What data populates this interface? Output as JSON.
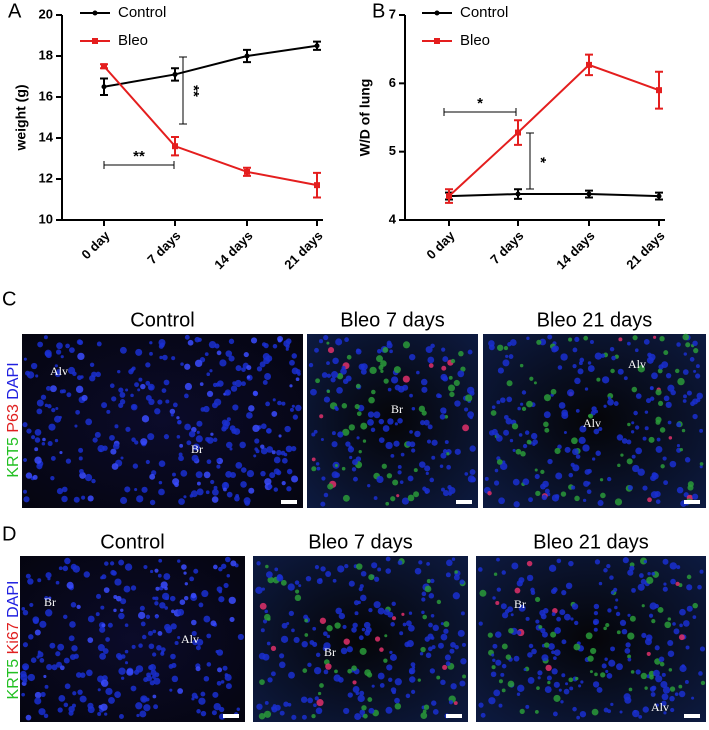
{
  "chart_data": [
    {
      "panel": "A",
      "type": "line",
      "ylabel": "weight (g)",
      "categories": [
        "0 day",
        "7 days",
        "14 days",
        "21 days"
      ],
      "ylim": [
        10,
        20
      ],
      "yticks": [
        10,
        12,
        14,
        16,
        18,
        20
      ],
      "legend": "upper left",
      "series": [
        {
          "name": "Control",
          "color": "#000000",
          "marker": "circle",
          "values": [
            16.5,
            17.1,
            18.0,
            18.5
          ],
          "errors": [
            0.4,
            0.3,
            0.3,
            0.2
          ]
        },
        {
          "name": "Bleo",
          "color": "#e41e1e",
          "marker": "square",
          "values": [
            17.5,
            13.6,
            12.35,
            11.7
          ],
          "errors": [
            0.1,
            0.45,
            0.2,
            0.6
          ]
        }
      ],
      "annotations": [
        {
          "text": "**"
        },
        {
          "text": "**"
        }
      ]
    },
    {
      "panel": "B",
      "type": "line",
      "ylabel": "W/D of lung",
      "categories": [
        "0 day",
        "7 days",
        "14 days",
        "21 days"
      ],
      "ylim": [
        4,
        7
      ],
      "yticks": [
        4,
        5,
        6,
        7
      ],
      "legend": "upper left",
      "series": [
        {
          "name": "Control",
          "color": "#000000",
          "marker": "circle",
          "values": [
            4.35,
            4.38,
            4.38,
            4.35
          ],
          "errors": [
            0.05,
            0.07,
            0.05,
            0.05
          ]
        },
        {
          "name": "Bleo",
          "color": "#e41e1e",
          "marker": "square",
          "values": [
            4.35,
            5.28,
            6.27,
            5.9
          ],
          "errors": [
            0.1,
            0.18,
            0.15,
            0.27
          ]
        }
      ],
      "annotations": [
        {
          "text": "*"
        },
        {
          "text": "*"
        }
      ]
    }
  ],
  "image_rows": [
    {
      "panel": "C",
      "stains": [
        {
          "text": "KRT5",
          "color": "#22c022"
        },
        {
          "text": "P63",
          "color": "#e02020"
        },
        {
          "text": "DAPI",
          "color": "#2020e0"
        }
      ],
      "images": [
        {
          "title": "Control",
          "labels": [
            "Alv",
            "Br"
          ]
        },
        {
          "title": "Bleo 7 days",
          "labels": [
            "Br"
          ]
        },
        {
          "title": "Bleo 21 days",
          "labels": [
            "Alv",
            "Alv"
          ]
        }
      ]
    },
    {
      "panel": "D",
      "stains": [
        {
          "text": "KRT5",
          "color": "#22c022"
        },
        {
          "text": "Ki67",
          "color": "#e02020"
        },
        {
          "text": "DAPI",
          "color": "#2020e0"
        }
      ],
      "images": [
        {
          "title": "Control",
          "labels": [
            "Br",
            "Alv"
          ]
        },
        {
          "title": "Bleo 7 days",
          "labels": [
            "Br"
          ]
        },
        {
          "title": "Bleo 21 days",
          "labels": [
            "Br",
            "Alv"
          ]
        }
      ]
    }
  ]
}
